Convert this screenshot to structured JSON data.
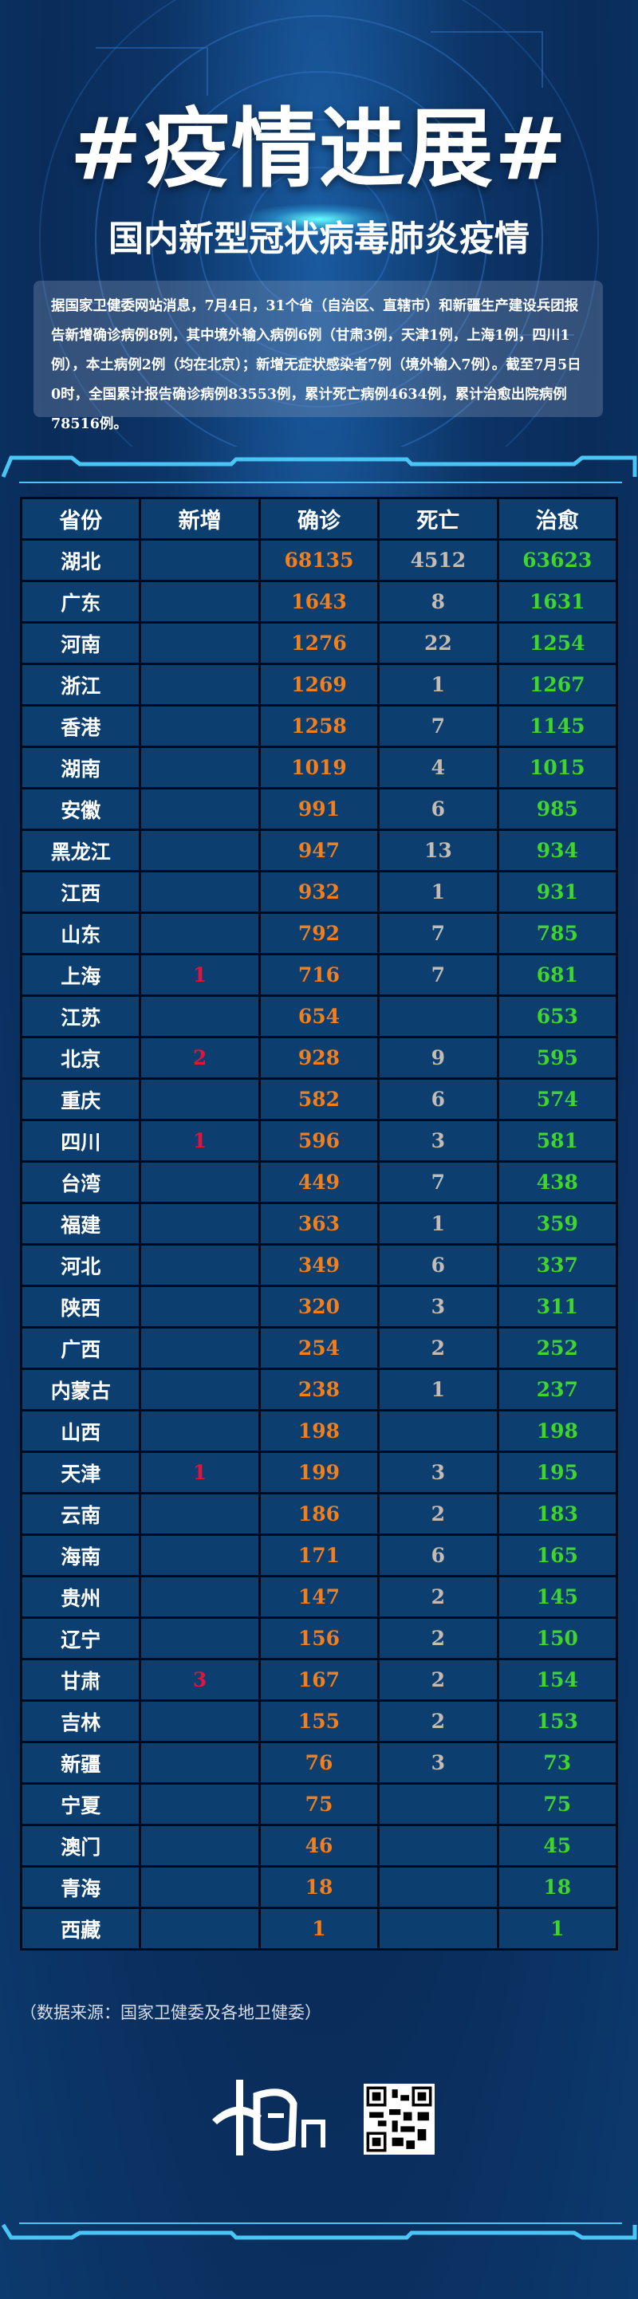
{
  "header": {
    "title": "#疫情进展#",
    "subtitle": "国内新型冠状病毒肺炎疫情"
  },
  "intro": "据国家卫健委网站消息，7月4日，31个省（自治区、直辖市）和新疆生产建设兵团报告新增确诊病例8例，其中境外输入病例6例（甘肃3例，天津1例，上海1例，四川1例），本土病例2例（均在北京）；新增无症状感染者7例（境外输入7例）。截至7月5日0时，全国累计报告确诊病例83553例，累计死亡病例4634例，累计治愈出院病例78516例。",
  "colors": {
    "background": "#0c3466",
    "cell": "#0d3e70",
    "new": "#e0143c",
    "confirmed": "#f27f1b",
    "deaths": "#c4bcb2",
    "cured": "#3fd52a"
  },
  "table": {
    "headers": [
      "省份",
      "新增",
      "确诊",
      "死亡",
      "治愈"
    ],
    "rows": [
      [
        "湖北",
        "",
        "68135",
        "4512",
        "63623"
      ],
      [
        "广东",
        "",
        "1643",
        "8",
        "1631"
      ],
      [
        "河南",
        "",
        "1276",
        "22",
        "1254"
      ],
      [
        "浙江",
        "",
        "1269",
        "1",
        "1267"
      ],
      [
        "香港",
        "",
        "1258",
        "7",
        "1145"
      ],
      [
        "湖南",
        "",
        "1019",
        "4",
        "1015"
      ],
      [
        "安徽",
        "",
        "991",
        "6",
        "985"
      ],
      [
        "黑龙江",
        "",
        "947",
        "13",
        "934"
      ],
      [
        "江西",
        "",
        "932",
        "1",
        "931"
      ],
      [
        "山东",
        "",
        "792",
        "7",
        "785"
      ],
      [
        "上海",
        "1",
        "716",
        "7",
        "681"
      ],
      [
        "江苏",
        "",
        "654",
        "",
        "653"
      ],
      [
        "北京",
        "2",
        "928",
        "9",
        "595"
      ],
      [
        "重庆",
        "",
        "582",
        "6",
        "574"
      ],
      [
        "四川",
        "1",
        "596",
        "3",
        "581"
      ],
      [
        "台湾",
        "",
        "449",
        "7",
        "438"
      ],
      [
        "福建",
        "",
        "363",
        "1",
        "359"
      ],
      [
        "河北",
        "",
        "349",
        "6",
        "337"
      ],
      [
        "陕西",
        "",
        "320",
        "3",
        "311"
      ],
      [
        "广西",
        "",
        "254",
        "2",
        "252"
      ],
      [
        "内蒙古",
        "",
        "238",
        "1",
        "237"
      ],
      [
        "山西",
        "",
        "198",
        "",
        "198"
      ],
      [
        "天津",
        "1",
        "199",
        "3",
        "195"
      ],
      [
        "云南",
        "",
        "186",
        "2",
        "183"
      ],
      [
        "海南",
        "",
        "171",
        "6",
        "165"
      ],
      [
        "贵州",
        "",
        "147",
        "2",
        "145"
      ],
      [
        "辽宁",
        "",
        "156",
        "2",
        "150"
      ],
      [
        "甘肃",
        "3",
        "167",
        "2",
        "154"
      ],
      [
        "吉林",
        "",
        "155",
        "2",
        "153"
      ],
      [
        "新疆",
        "",
        "76",
        "3",
        "73"
      ],
      [
        "宁夏",
        "",
        "75",
        "",
        "75"
      ],
      [
        "澳门",
        "",
        "46",
        "",
        "45"
      ],
      [
        "青海",
        "",
        "18",
        "",
        "18"
      ],
      [
        "西藏",
        "",
        "1",
        "",
        "1"
      ]
    ]
  },
  "footer": {
    "source": "（数据来源：国家卫健委及各地卫健委）",
    "logo_text": "中国网",
    "qr_icon": "qr-code-icon"
  }
}
